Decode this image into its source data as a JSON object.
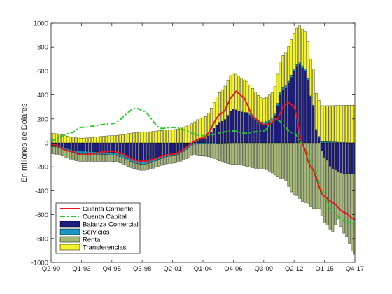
{
  "chart_data": {
    "type": "bar+line",
    "title": "",
    "ylabel": "En millones de Dolares",
    "xlabel": "",
    "ylim": [
      -1000,
      1000
    ],
    "yticks": [
      -1000,
      -800,
      -600,
      -400,
      -200,
      0,
      200,
      400,
      600,
      800,
      1000
    ],
    "xtick_labels": [
      "Q2-90",
      "Q1-93",
      "Q4-95",
      "Q3-98",
      "Q2-01",
      "Q1-04",
      "Q4-06",
      "Q3-09",
      "Q2-12",
      "Q1-15",
      "Q4-17"
    ],
    "grid": false,
    "legend_placement": "bottom-left",
    "period_start": "Q2-90",
    "period_end": "Q4-17",
    "bar_anchors": {
      "balanza_comercial": [
        [
          "Q2-90",
          -20
        ],
        [
          "Q1-93",
          -70
        ],
        [
          "Q4-95",
          -80
        ],
        [
          "Q3-98",
          -155
        ],
        [
          "Q2-01",
          -90
        ],
        [
          "Q1-04",
          30
        ],
        [
          "Q4-05",
          180
        ],
        [
          "Q4-06",
          280
        ],
        [
          "Q4-07",
          250
        ],
        [
          "Q3-09",
          150
        ],
        [
          "Q2-10",
          180
        ],
        [
          "Q2-11",
          440
        ],
        [
          "Q4-12",
          650
        ],
        [
          "Q2-13",
          600
        ],
        [
          "Q1-14",
          300
        ],
        [
          "Q2-14",
          100
        ],
        [
          "Q1-15",
          -120
        ],
        [
          "Q4-15",
          -220
        ],
        [
          "Q4-16",
          -255
        ],
        [
          "Q4-17",
          -260
        ]
      ],
      "servicios": [
        [
          "Q2-90",
          -10
        ],
        [
          "Q1-93",
          -20
        ],
        [
          "Q4-95",
          -20
        ],
        [
          "Q3-98",
          -25
        ],
        [
          "Q2-01",
          -20
        ],
        [
          "Q1-04",
          -10
        ],
        [
          "Q4-06",
          0
        ],
        [
          "Q3-09",
          20
        ],
        [
          "Q2-12",
          20
        ],
        [
          "Q1-15",
          10
        ],
        [
          "Q4-17",
          0
        ]
      ],
      "renta": [
        [
          "Q2-90",
          -60
        ],
        [
          "Q1-93",
          -65
        ],
        [
          "Q4-95",
          -55
        ],
        [
          "Q3-98",
          -50
        ],
        [
          "Q2-01",
          -60
        ],
        [
          "Q1-04",
          -100
        ],
        [
          "Q4-06",
          -180
        ],
        [
          "Q3-09",
          -220
        ],
        [
          "Q2-11",
          -300
        ],
        [
          "Q2-12",
          -430
        ],
        [
          "Q2-13",
          -500
        ],
        [
          "Q1-14",
          -550
        ],
        [
          "Q1-15",
          -550
        ],
        [
          "Q4-15",
          -520
        ],
        [
          "Q2-16",
          -400
        ],
        [
          "Q4-16",
          -500
        ],
        [
          "Q4-17",
          -670
        ]
      ],
      "transferencias": [
        [
          "Q2-90",
          80
        ],
        [
          "Q1-93",
          40
        ],
        [
          "Q4-95",
          60
        ],
        [
          "Q3-98",
          90
        ],
        [
          "Q2-01",
          110
        ],
        [
          "Q1-04",
          180
        ],
        [
          "Q4-06",
          300
        ],
        [
          "Q3-09",
          200
        ],
        [
          "Q2-12",
          300
        ],
        [
          "Q4-12",
          310
        ],
        [
          "Q1-15",
          300
        ],
        [
          "Q4-17",
          315
        ]
      ]
    },
    "line_anchors": {
      "cuenta_corriente": [
        [
          "Q2-90",
          -10
        ],
        [
          "Q1-92",
          -70
        ],
        [
          "Q1-93",
          -100
        ],
        [
          "Q4-95",
          -70
        ],
        [
          "Q3-98",
          -155
        ],
        [
          "Q2-01",
          -95
        ],
        [
          "Q1-04",
          40
        ],
        [
          "Q4-05",
          250
        ],
        [
          "Q4-06",
          400
        ],
        [
          "Q1-07",
          430
        ],
        [
          "Q3-07",
          390
        ],
        [
          "Q4-08",
          200
        ],
        [
          "Q3-09",
          150
        ],
        [
          "Q1-10",
          160
        ],
        [
          "Q4-10",
          200
        ],
        [
          "Q2-11",
          300
        ],
        [
          "Q4-11",
          340
        ],
        [
          "Q2-12",
          300
        ],
        [
          "Q1-13",
          -10
        ],
        [
          "Q4-13",
          -200
        ],
        [
          "Q1-15",
          -450
        ],
        [
          "Q4-15",
          -500
        ],
        [
          "Q4-16",
          -580
        ],
        [
          "Q4-17",
          -640
        ]
      ],
      "cuenta_capital": [
        [
          "Q2-90",
          20
        ],
        [
          "Q1-92",
          80
        ],
        [
          "Q1-93",
          130
        ],
        [
          "Q4-95",
          160
        ],
        [
          "Q1-98",
          290
        ],
        [
          "Q3-98",
          270
        ],
        [
          "Q2-00",
          120
        ],
        [
          "Q2-01",
          130
        ],
        [
          "Q1-04",
          60
        ],
        [
          "Q4-06",
          100
        ],
        [
          "Q4-07",
          80
        ],
        [
          "Q3-09",
          100
        ],
        [
          "Q3-10",
          200
        ],
        [
          "Q2-12",
          80
        ],
        [
          "Q2-13",
          -50
        ],
        [
          "Q1-14",
          -200
        ],
        [
          "Q1-15",
          -450
        ],
        [
          "Q4-15",
          -580
        ],
        [
          "Q4-16",
          -650
        ],
        [
          "Q4-17",
          -680
        ]
      ]
    },
    "series": [
      {
        "key": "cuenta_corriente",
        "name": "Cuenta Corriente",
        "kind": "line",
        "style": "solid",
        "color": "#e6141d"
      },
      {
        "key": "cuenta_capital",
        "name": "Cuenta Capital",
        "kind": "line",
        "style": "dashdot",
        "color": "#22cc22"
      },
      {
        "key": "balanza_comercial",
        "name": "Balanza Comercial",
        "kind": "bar",
        "color": "#1d1d80"
      },
      {
        "key": "servicios",
        "name": "Servicios",
        "kind": "bar",
        "color": "#1797c2"
      },
      {
        "key": "renta",
        "name": "Renta",
        "kind": "bar",
        "color": "#a4b878"
      },
      {
        "key": "transferencias",
        "name": "Transferencias",
        "kind": "bar",
        "color": "#f2f22e"
      }
    ],
    "legend": [
      "Cuenta Corriente",
      "Cuenta Capital",
      "Balanza Comercial",
      "Servicios",
      "Renta",
      "Transferencias"
    ]
  }
}
